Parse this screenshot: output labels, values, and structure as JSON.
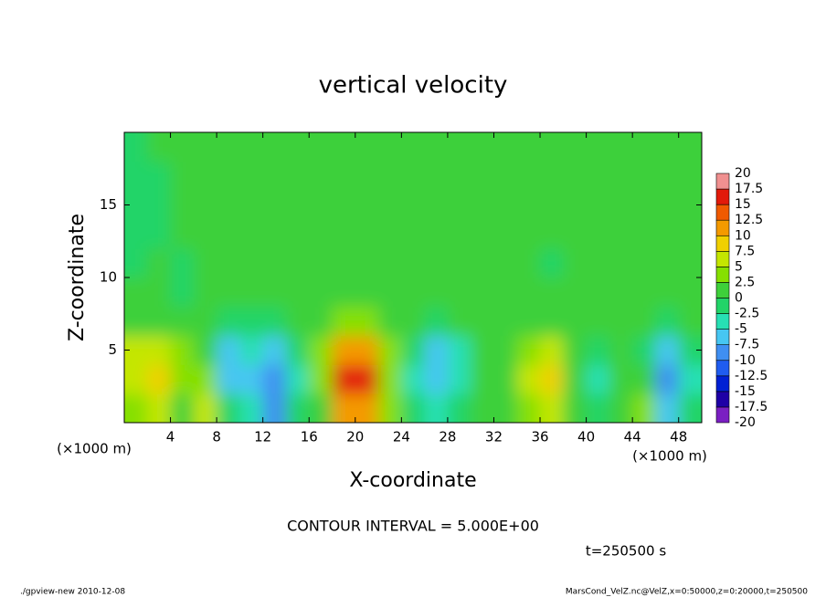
{
  "chart_data": {
    "type": "heatmap",
    "title": "vertical velocity",
    "x_label": "X-coordinate",
    "y_label": "Z-coordinate",
    "x_unit": "(×1000 m)",
    "xlim": [
      0,
      50
    ],
    "ylim": [
      0,
      20
    ],
    "xticks": [
      4,
      8,
      12,
      16,
      20,
      24,
      28,
      32,
      36,
      40,
      44,
      48
    ],
    "yticks": [
      5,
      10,
      15
    ],
    "x": [
      1,
      3,
      5,
      7,
      9,
      11,
      13,
      15,
      17,
      19,
      21,
      23,
      25,
      27,
      29,
      31,
      33,
      35,
      37,
      39,
      41,
      43,
      45,
      47,
      49
    ],
    "y": [
      1,
      3,
      5,
      7,
      9,
      11,
      13,
      15,
      17,
      19
    ],
    "values": [
      [
        3,
        5,
        2,
        5,
        -2,
        -4,
        -10,
        -2,
        2,
        10,
        10,
        3,
        -1,
        -4,
        -2,
        1,
        2,
        3,
        6,
        2,
        -2,
        2,
        4,
        -7,
        -2
      ],
      [
        6,
        8,
        3,
        3,
        -6,
        -6,
        -10,
        -3,
        4,
        15,
        15,
        4,
        -3,
        -7,
        -4,
        1,
        2,
        5,
        8,
        2,
        -3,
        1,
        2,
        -10,
        -3
      ],
      [
        5,
        7,
        3,
        1,
        -6,
        -3,
        -6,
        -2,
        3,
        12,
        10,
        3,
        -2,
        -6,
        -3,
        1,
        2,
        4,
        7,
        2,
        -2,
        0,
        -2,
        -6,
        -1
      ],
      [
        2,
        2,
        1,
        0,
        -2,
        -1,
        -1,
        0,
        1,
        3,
        3,
        1,
        0,
        -1,
        0,
        1,
        1,
        1,
        2,
        1,
        0,
        0,
        0,
        -1,
        0
      ],
      [
        0,
        0,
        -1,
        0,
        1,
        1,
        0,
        0,
        0,
        1,
        1,
        0,
        1,
        1,
        0,
        0,
        1,
        0,
        0,
        1,
        1,
        0,
        0,
        1,
        0
      ],
      [
        -1,
        0,
        -1,
        0,
        0,
        1,
        1,
        0,
        0,
        1,
        1,
        1,
        1,
        1,
        1,
        0,
        1,
        0,
        -1,
        1,
        1,
        1,
        0,
        1,
        0
      ],
      [
        -1,
        -1,
        0,
        0,
        0,
        1,
        1,
        1,
        0,
        1,
        1,
        1,
        1,
        1,
        1,
        1,
        1,
        1,
        0,
        1,
        1,
        1,
        0,
        1,
        1
      ],
      [
        -1,
        -1,
        0,
        0,
        0,
        0,
        1,
        1,
        0,
        0,
        1,
        1,
        2,
        2,
        1,
        1,
        1,
        1,
        0,
        1,
        2,
        1,
        0,
        1,
        1
      ],
      [
        -1,
        -1,
        0,
        0,
        0,
        0,
        1,
        1,
        0,
        0,
        1,
        1,
        2,
        2,
        1,
        1,
        1,
        1,
        0,
        1,
        2,
        1,
        0,
        0,
        1
      ],
      [
        -1,
        0,
        0,
        0,
        0,
        0,
        0,
        1,
        0,
        0,
        1,
        1,
        1,
        1,
        1,
        1,
        0,
        1,
        0,
        1,
        1,
        1,
        0,
        0,
        1
      ]
    ],
    "colorbar": {
      "levels": [
        -20,
        -17.5,
        -15,
        -12.5,
        -10,
        -7.5,
        -5,
        -2.5,
        0,
        2.5,
        5,
        7.5,
        10,
        12.5,
        15,
        17.5,
        20
      ],
      "colors": [
        "#7a1fc2",
        "#1e00a6",
        "#0020d4",
        "#1f5cf0",
        "#3f8ff2",
        "#46c6f2",
        "#27e0b4",
        "#22d468",
        "#3ed03a",
        "#86e000",
        "#c4e600",
        "#f0d000",
        "#f49a00",
        "#f05a00",
        "#e21a0a",
        "#f09090"
      ]
    },
    "contour_interval_text": "CONTOUR INTERVAL = 5.000E+00",
    "time_text": "t=250500 s"
  },
  "footer": {
    "left": "./gpview-new   2010-12-08",
    "right": "MarsCond_VelZ.nc@VelZ,x=0:50000,z=0:20000,t=250500"
  }
}
